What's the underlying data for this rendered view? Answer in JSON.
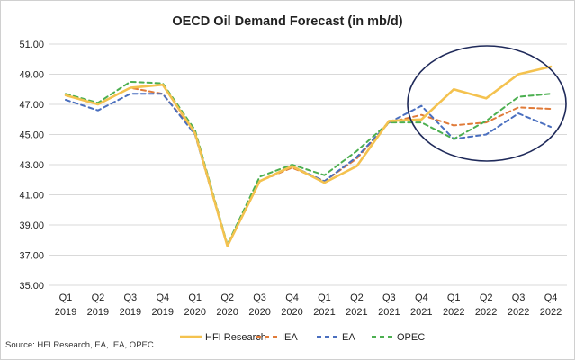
{
  "chart_data": {
    "type": "line",
    "title": "OECD Oil Demand Forecast (in mb/d)",
    "source": "Source: HFI Research, EA, IEA, OPEC",
    "categories": [
      [
        "Q1",
        "2019"
      ],
      [
        "Q2",
        "2019"
      ],
      [
        "Q3",
        "2019"
      ],
      [
        "Q4",
        "2019"
      ],
      [
        "Q1",
        "2020"
      ],
      [
        "Q2",
        "2020"
      ],
      [
        "Q3",
        "2020"
      ],
      [
        "Q4",
        "2020"
      ],
      [
        "Q1",
        "2021"
      ],
      [
        "Q2",
        "2021"
      ],
      [
        "Q3",
        "2021"
      ],
      [
        "Q4",
        "2021"
      ],
      [
        "Q1",
        "2022"
      ],
      [
        "Q2",
        "2022"
      ],
      [
        "Q3",
        "2022"
      ],
      [
        "Q4",
        "2022"
      ]
    ],
    "ylim": [
      35,
      51
    ],
    "yticks": [
      "35.00",
      "37.00",
      "39.00",
      "41.00",
      "43.00",
      "45.00",
      "47.00",
      "49.00",
      "51.00"
    ],
    "grid": true,
    "legend_position": "bottom",
    "annotation": "ellipse highlighting 2022 forecasts",
    "series": [
      {
        "name": "HFI Research",
        "color": "#f4c24f",
        "dash": "solid",
        "values": [
          47.6,
          47.0,
          48.1,
          48.3,
          45.1,
          37.6,
          41.9,
          42.9,
          41.8,
          42.9,
          45.9,
          46.0,
          48.0,
          47.4,
          49.0,
          49.5
        ]
      },
      {
        "name": "IEA",
        "color": "#e07b39",
        "dash": "dashed",
        "values": [
          47.6,
          47.0,
          48.1,
          47.7,
          45.1,
          37.6,
          41.9,
          42.8,
          41.9,
          43.4,
          45.8,
          46.3,
          45.6,
          45.8,
          46.8,
          46.7
        ]
      },
      {
        "name": "EA",
        "color": "#4a6fbf",
        "dash": "dashed",
        "values": [
          47.3,
          46.6,
          47.7,
          47.7,
          45.0,
          37.6,
          41.9,
          42.9,
          41.9,
          43.5,
          45.8,
          46.9,
          44.7,
          45.0,
          46.4,
          45.5
        ]
      },
      {
        "name": "OPEC",
        "color": "#4caf50",
        "dash": "dashed",
        "values": [
          47.7,
          47.1,
          48.5,
          48.4,
          45.3,
          37.7,
          42.2,
          43.0,
          42.3,
          43.9,
          45.8,
          45.8,
          44.7,
          45.9,
          47.5,
          47.7
        ]
      }
    ]
  }
}
